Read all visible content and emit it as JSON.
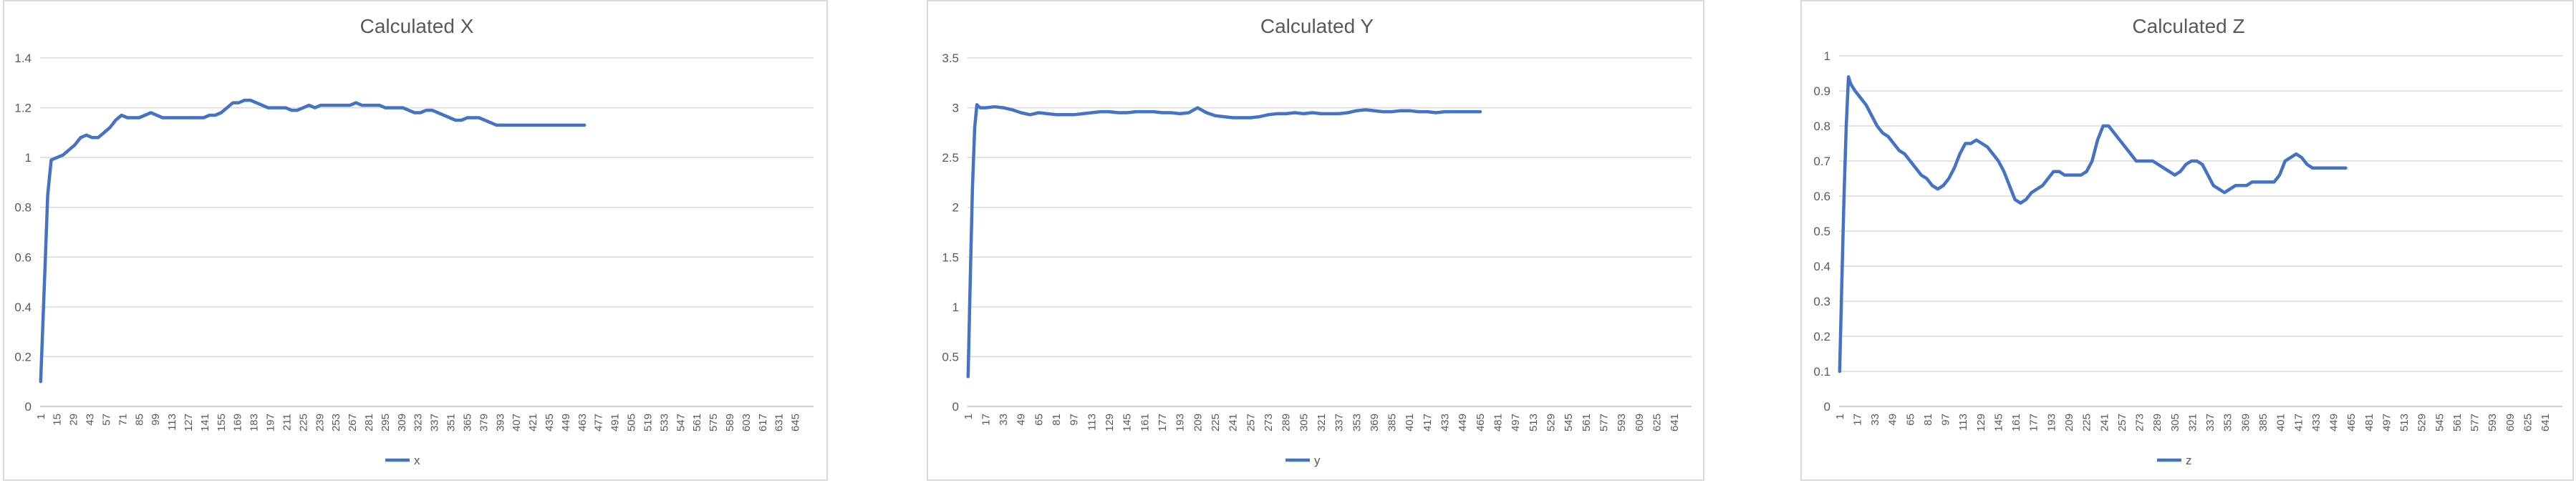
{
  "chart_data": [
    {
      "type": "line",
      "title": "Calculated X",
      "xlabel": "",
      "ylabel": "",
      "ylim": [
        0,
        1.4
      ],
      "ytick_step": 0.2,
      "ytick_labels": [
        "0",
        "0.2",
        "0.4",
        "0.6",
        "0.8",
        "1",
        "1.2",
        "1.4"
      ],
      "x_categories": 660,
      "xtick_labels": [
        "1",
        "15",
        "29",
        "43",
        "57",
        "71",
        "85",
        "99",
        "113",
        "127",
        "141",
        "155",
        "169",
        "183",
        "197",
        "211",
        "225",
        "239",
        "253",
        "267",
        "281",
        "295",
        "309",
        "323",
        "337",
        "351",
        "365",
        "379",
        "393",
        "407",
        "421",
        "435",
        "449",
        "463",
        "477",
        "491",
        "505",
        "519",
        "533",
        "547",
        "561",
        "575",
        "589",
        "603",
        "617",
        "631",
        "645"
      ],
      "grid": true,
      "legend_position": "bottom",
      "series": [
        {
          "name": "x",
          "color": "#4472c4",
          "x": [
            1,
            3,
            5,
            7,
            10,
            15,
            20,
            25,
            30,
            35,
            40,
            45,
            50,
            55,
            60,
            65,
            70,
            75,
            80,
            85,
            90,
            95,
            100,
            105,
            110,
            115,
            120,
            125,
            130,
            135,
            140,
            145,
            150,
            155,
            160,
            165,
            170,
            175,
            180,
            185,
            190,
            195,
            200,
            205,
            210,
            215,
            220,
            225,
            230,
            235,
            240,
            245,
            250,
            255,
            260,
            265,
            270,
            275,
            280,
            285,
            290,
            295,
            300,
            305,
            310,
            315,
            320,
            325,
            330,
            335,
            340,
            345,
            350,
            355,
            360,
            365,
            370,
            375,
            380,
            385,
            390,
            395,
            400,
            405,
            410,
            415,
            420,
            425,
            430,
            435,
            440,
            445,
            450,
            455,
            460,
            465
          ],
          "y": [
            0.1,
            0.35,
            0.6,
            0.85,
            0.99,
            1.0,
            1.01,
            1.03,
            1.05,
            1.08,
            1.09,
            1.08,
            1.08,
            1.1,
            1.12,
            1.15,
            1.17,
            1.16,
            1.16,
            1.16,
            1.17,
            1.18,
            1.17,
            1.16,
            1.16,
            1.16,
            1.16,
            1.16,
            1.16,
            1.16,
            1.16,
            1.17,
            1.17,
            1.18,
            1.2,
            1.22,
            1.22,
            1.23,
            1.23,
            1.22,
            1.21,
            1.2,
            1.2,
            1.2,
            1.2,
            1.19,
            1.19,
            1.2,
            1.21,
            1.2,
            1.21,
            1.21,
            1.21,
            1.21,
            1.21,
            1.21,
            1.22,
            1.21,
            1.21,
            1.21,
            1.21,
            1.2,
            1.2,
            1.2,
            1.2,
            1.19,
            1.18,
            1.18,
            1.19,
            1.19,
            1.18,
            1.17,
            1.16,
            1.15,
            1.15,
            1.16,
            1.16,
            1.16,
            1.15,
            1.14,
            1.13,
            1.13,
            1.13,
            1.13,
            1.13,
            1.13,
            1.13,
            1.13,
            1.13,
            1.13,
            1.13,
            1.13,
            1.13,
            1.13,
            1.13,
            1.13
          ]
        }
      ]
    },
    {
      "type": "line",
      "title": "Calculated Y",
      "xlabel": "",
      "ylabel": "",
      "ylim": [
        0,
        3.5
      ],
      "ytick_step": 0.5,
      "ytick_labels": [
        "0",
        "0.5",
        "1",
        "1.5",
        "2",
        "2.5",
        "3",
        "3.5"
      ],
      "x_categories": 656,
      "xtick_labels": [
        "1",
        "17",
        "33",
        "49",
        "65",
        "81",
        "97",
        "113",
        "129",
        "145",
        "161",
        "177",
        "193",
        "209",
        "225",
        "241",
        "257",
        "273",
        "289",
        "305",
        "321",
        "337",
        "353",
        "369",
        "385",
        "401",
        "417",
        "433",
        "449",
        "465",
        "481",
        "497",
        "513",
        "529",
        "545",
        "561",
        "577",
        "593",
        "609",
        "625",
        "641"
      ],
      "grid": true,
      "legend_position": "bottom",
      "series": [
        {
          "name": "y",
          "color": "#4472c4",
          "x": [
            1,
            3,
            5,
            7,
            9,
            12,
            17,
            25,
            33,
            41,
            49,
            57,
            65,
            73,
            81,
            89,
            97,
            105,
            113,
            121,
            129,
            137,
            145,
            153,
            161,
            169,
            177,
            185,
            193,
            201,
            209,
            217,
            225,
            233,
            241,
            249,
            257,
            265,
            273,
            281,
            289,
            297,
            305,
            313,
            321,
            329,
            337,
            345,
            353,
            361,
            369,
            377,
            385,
            393,
            401,
            409,
            417,
            425,
            433,
            441,
            449,
            457,
            465
          ],
          "y": [
            0.3,
            1.3,
            2.2,
            2.8,
            3.03,
            3.0,
            3.0,
            3.01,
            3.0,
            2.98,
            2.95,
            2.93,
            2.95,
            2.94,
            2.93,
            2.93,
            2.93,
            2.94,
            2.95,
            2.96,
            2.96,
            2.95,
            2.95,
            2.96,
            2.96,
            2.96,
            2.95,
            2.95,
            2.94,
            2.95,
            3.0,
            2.95,
            2.92,
            2.91,
            2.9,
            2.9,
            2.9,
            2.91,
            2.93,
            2.94,
            2.94,
            2.95,
            2.94,
            2.95,
            2.94,
            2.94,
            2.94,
            2.95,
            2.97,
            2.98,
            2.97,
            2.96,
            2.96,
            2.97,
            2.97,
            2.96,
            2.96,
            2.95,
            2.96,
            2.96,
            2.96,
            2.96,
            2.96
          ]
        }
      ]
    },
    {
      "type": "line",
      "title": "Calculated Z",
      "xlabel": "",
      "ylabel": "",
      "ylim": [
        0,
        1
      ],
      "ytick_step": 0.1,
      "ytick_labels": [
        "0",
        "0.1",
        "0.2",
        "0.3",
        "0.4",
        "0.5",
        "0.6",
        "0.7",
        "0.8",
        "0.9",
        "1"
      ],
      "x_categories": 656,
      "xtick_labels": [
        "1",
        "17",
        "33",
        "49",
        "65",
        "81",
        "97",
        "113",
        "129",
        "145",
        "161",
        "177",
        "193",
        "209",
        "225",
        "241",
        "257",
        "273",
        "289",
        "305",
        "321",
        "337",
        "353",
        "369",
        "385",
        "401",
        "417",
        "433",
        "449",
        "465",
        "481",
        "497",
        "513",
        "529",
        "545",
        "561",
        "577",
        "593",
        "609",
        "625",
        "641"
      ],
      "grid": true,
      "legend_position": "bottom",
      "series": [
        {
          "name": "z",
          "color": "#4472c4",
          "x": [
            1,
            3,
            5,
            7,
            9,
            11,
            15,
            20,
            25,
            30,
            35,
            40,
            45,
            50,
            55,
            60,
            65,
            70,
            75,
            80,
            85,
            90,
            95,
            100,
            105,
            110,
            115,
            120,
            125,
            130,
            135,
            140,
            145,
            150,
            155,
            160,
            165,
            170,
            175,
            180,
            185,
            190,
            195,
            200,
            205,
            210,
            215,
            220,
            225,
            230,
            235,
            240,
            245,
            250,
            255,
            260,
            265,
            270,
            275,
            280,
            285,
            290,
            295,
            300,
            305,
            310,
            315,
            320,
            325,
            330,
            335,
            340,
            345,
            350,
            355,
            360,
            365,
            370,
            375,
            380,
            385,
            390,
            395,
            400,
            405,
            410,
            415,
            420,
            425,
            430,
            435,
            440,
            445,
            450,
            455,
            460
          ],
          "y": [
            0.1,
            0.35,
            0.6,
            0.8,
            0.94,
            0.92,
            0.9,
            0.88,
            0.86,
            0.83,
            0.8,
            0.78,
            0.77,
            0.75,
            0.73,
            0.72,
            0.7,
            0.68,
            0.66,
            0.65,
            0.63,
            0.62,
            0.63,
            0.65,
            0.68,
            0.72,
            0.75,
            0.75,
            0.76,
            0.75,
            0.74,
            0.72,
            0.7,
            0.67,
            0.63,
            0.59,
            0.58,
            0.59,
            0.61,
            0.62,
            0.63,
            0.65,
            0.67,
            0.67,
            0.66,
            0.66,
            0.66,
            0.66,
            0.67,
            0.7,
            0.76,
            0.8,
            0.8,
            0.78,
            0.76,
            0.74,
            0.72,
            0.7,
            0.7,
            0.7,
            0.7,
            0.69,
            0.68,
            0.67,
            0.66,
            0.67,
            0.69,
            0.7,
            0.7,
            0.69,
            0.66,
            0.63,
            0.62,
            0.61,
            0.62,
            0.63,
            0.63,
            0.63,
            0.64,
            0.64,
            0.64,
            0.64,
            0.64,
            0.66,
            0.7,
            0.71,
            0.72,
            0.71,
            0.69,
            0.68,
            0.68,
            0.68,
            0.68,
            0.68,
            0.68,
            0.68
          ]
        }
      ]
    }
  ]
}
